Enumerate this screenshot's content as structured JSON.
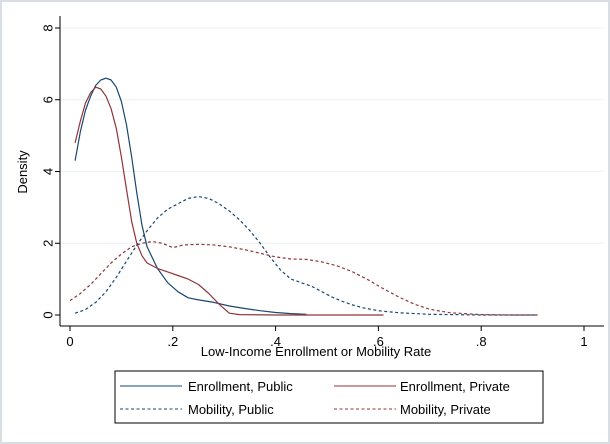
{
  "chart_data": {
    "type": "line",
    "xlabel": "Low-Income Enrollment or Mobility Rate",
    "ylabel": "Density",
    "xlim": [
      0,
      1
    ],
    "ylim": [
      0,
      8
    ],
    "xticks": [
      {
        "value": 0,
        "label": "0"
      },
      {
        "value": 0.2,
        "label": ".2"
      },
      {
        "value": 0.4,
        "label": ".4"
      },
      {
        "value": 0.6,
        "label": ".6"
      },
      {
        "value": 0.8,
        "label": ".8"
      },
      {
        "value": 1,
        "label": "1"
      }
    ],
    "yticks": [
      {
        "value": 0,
        "label": "0"
      },
      {
        "value": 2,
        "label": "2"
      },
      {
        "value": 4,
        "label": "4"
      },
      {
        "value": 6,
        "label": "6"
      },
      {
        "value": 8,
        "label": "8"
      }
    ],
    "grid": "horizontal",
    "legend_position": "bottom",
    "series": [
      {
        "name": "Enrollment, Public",
        "color": "#1a476f",
        "dash": "solid",
        "points": [
          [
            0.01,
            4.3
          ],
          [
            0.02,
            5.1
          ],
          [
            0.03,
            5.7
          ],
          [
            0.04,
            6.1
          ],
          [
            0.05,
            6.4
          ],
          [
            0.06,
            6.55
          ],
          [
            0.07,
            6.6
          ],
          [
            0.08,
            6.55
          ],
          [
            0.09,
            6.35
          ],
          [
            0.1,
            5.95
          ],
          [
            0.11,
            5.3
          ],
          [
            0.12,
            4.4
          ],
          [
            0.13,
            3.4
          ],
          [
            0.14,
            2.5
          ],
          [
            0.15,
            1.9
          ],
          [
            0.17,
            1.3
          ],
          [
            0.19,
            0.9
          ],
          [
            0.21,
            0.65
          ],
          [
            0.23,
            0.48
          ],
          [
            0.25,
            0.42
          ],
          [
            0.28,
            0.35
          ],
          [
            0.31,
            0.25
          ],
          [
            0.34,
            0.18
          ],
          [
            0.37,
            0.12
          ],
          [
            0.4,
            0.07
          ],
          [
            0.43,
            0.04
          ],
          [
            0.46,
            0.02
          ]
        ]
      },
      {
        "name": "Enrollment, Private",
        "color": "#90353b",
        "dash": "solid",
        "points": [
          [
            0.01,
            4.8
          ],
          [
            0.02,
            5.4
          ],
          [
            0.03,
            5.9
          ],
          [
            0.04,
            6.2
          ],
          [
            0.05,
            6.35
          ],
          [
            0.06,
            6.3
          ],
          [
            0.07,
            6.1
          ],
          [
            0.08,
            5.75
          ],
          [
            0.09,
            5.2
          ],
          [
            0.1,
            4.4
          ],
          [
            0.11,
            3.5
          ],
          [
            0.12,
            2.6
          ],
          [
            0.13,
            2.0
          ],
          [
            0.14,
            1.65
          ],
          [
            0.15,
            1.45
          ],
          [
            0.17,
            1.3
          ],
          [
            0.19,
            1.2
          ],
          [
            0.21,
            1.1
          ],
          [
            0.23,
            1.0
          ],
          [
            0.25,
            0.85
          ],
          [
            0.27,
            0.6
          ],
          [
            0.29,
            0.3
          ],
          [
            0.31,
            0.05
          ],
          [
            0.33,
            0.01
          ],
          [
            0.4,
            0.0
          ],
          [
            0.5,
            0.0
          ],
          [
            0.61,
            0.0
          ]
        ]
      },
      {
        "name": "Mobility, Public",
        "color": "#1a476f",
        "dash": "dashed",
        "points": [
          [
            0.01,
            0.05
          ],
          [
            0.03,
            0.15
          ],
          [
            0.05,
            0.35
          ],
          [
            0.07,
            0.65
          ],
          [
            0.09,
            1.05
          ],
          [
            0.11,
            1.5
          ],
          [
            0.13,
            1.95
          ],
          [
            0.15,
            2.35
          ],
          [
            0.17,
            2.7
          ],
          [
            0.19,
            2.95
          ],
          [
            0.21,
            3.1
          ],
          [
            0.23,
            3.25
          ],
          [
            0.25,
            3.3
          ],
          [
            0.27,
            3.25
          ],
          [
            0.29,
            3.1
          ],
          [
            0.31,
            2.9
          ],
          [
            0.33,
            2.65
          ],
          [
            0.35,
            2.35
          ],
          [
            0.37,
            2.0
          ],
          [
            0.39,
            1.6
          ],
          [
            0.41,
            1.25
          ],
          [
            0.43,
            1.0
          ],
          [
            0.45,
            0.9
          ],
          [
            0.47,
            0.8
          ],
          [
            0.49,
            0.65
          ],
          [
            0.51,
            0.5
          ],
          [
            0.53,
            0.38
          ],
          [
            0.55,
            0.28
          ],
          [
            0.57,
            0.2
          ],
          [
            0.6,
            0.12
          ],
          [
            0.64,
            0.06
          ],
          [
            0.7,
            0.02
          ],
          [
            0.8,
            0.0
          ],
          [
            0.91,
            0.0
          ]
        ]
      },
      {
        "name": "Mobility, Private",
        "color": "#90353b",
        "dash": "dashed",
        "points": [
          [
            0.0,
            0.4
          ],
          [
            0.02,
            0.6
          ],
          [
            0.04,
            0.85
          ],
          [
            0.06,
            1.15
          ],
          [
            0.08,
            1.45
          ],
          [
            0.1,
            1.7
          ],
          [
            0.12,
            1.9
          ],
          [
            0.14,
            2.0
          ],
          [
            0.16,
            2.05
          ],
          [
            0.18,
            2.0
          ],
          [
            0.2,
            1.88
          ],
          [
            0.22,
            1.95
          ],
          [
            0.25,
            1.97
          ],
          [
            0.28,
            1.95
          ],
          [
            0.31,
            1.9
          ],
          [
            0.34,
            1.82
          ],
          [
            0.37,
            1.72
          ],
          [
            0.4,
            1.62
          ],
          [
            0.43,
            1.56
          ],
          [
            0.46,
            1.55
          ],
          [
            0.49,
            1.48
          ],
          [
            0.52,
            1.37
          ],
          [
            0.55,
            1.2
          ],
          [
            0.58,
            0.98
          ],
          [
            0.61,
            0.73
          ],
          [
            0.64,
            0.5
          ],
          [
            0.67,
            0.3
          ],
          [
            0.7,
            0.16
          ],
          [
            0.74,
            0.06
          ],
          [
            0.8,
            0.01
          ],
          [
            0.86,
            0.0
          ],
          [
            0.91,
            0.0
          ]
        ]
      }
    ]
  }
}
